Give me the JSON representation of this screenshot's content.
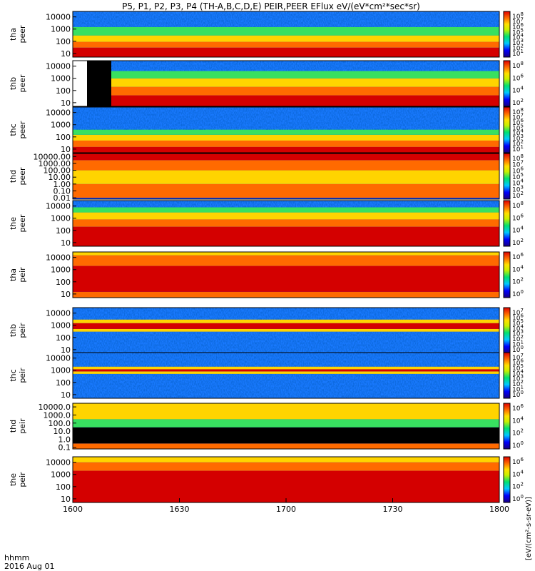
{
  "chart_data": {
    "type": "heatmap",
    "title": "P5, P1, P2, P3, P4 (TH-A,B,C,D,E) PEIR,PEER EFlux eV/(eV*cm²*sec*sr)",
    "x_ticks": [
      "1600",
      "1630",
      "1700",
      "1730",
      "1800"
    ],
    "x_range_hhmm": [
      "1600",
      "1800"
    ],
    "time_label": "hhmm",
    "date_label": "2016 Aug 01",
    "colorbar_label": "[eV/(cm²-s-sr-eV)]",
    "panels": [
      {
        "probe": "tha",
        "species": "peer",
        "yticks": [
          "10000",
          "1000",
          "100",
          "10"
        ],
        "cbar_exponents": [
          "8",
          "7",
          "6",
          "5",
          "4",
          "3",
          "2",
          "1"
        ],
        "scale": "log",
        "bands": [
          {
            "from_eV": 5,
            "to_eV": 30,
            "level": "red"
          },
          {
            "from_eV": 30,
            "to_eV": 90,
            "level": "orange"
          },
          {
            "from_eV": 90,
            "to_eV": 300,
            "level": "yellow"
          },
          {
            "from_eV": 300,
            "to_eV": 1500,
            "level": "green"
          },
          {
            "from_eV": 1500,
            "to_eV": 30000,
            "level": "blue-noise"
          }
        ]
      },
      {
        "probe": "thb",
        "species": "peer",
        "yticks": [
          "10000",
          "1000",
          "100",
          "10"
        ],
        "cbar_exponents": [
          "8",
          "6",
          "4",
          "2"
        ],
        "scale": "log",
        "data_gap_hhmm": [
          "1600",
          "1610"
        ],
        "bands": [
          {
            "from_eV": 5,
            "to_eV": 40,
            "level": "red"
          },
          {
            "from_eV": 40,
            "to_eV": 200,
            "level": "orange"
          },
          {
            "from_eV": 200,
            "to_eV": 1000,
            "level": "yellow"
          },
          {
            "from_eV": 1000,
            "to_eV": 4000,
            "level": "green"
          },
          {
            "from_eV": 4000,
            "to_eV": 30000,
            "level": "blue-noise"
          }
        ]
      },
      {
        "probe": "thc",
        "species": "peer",
        "yticks": [
          "10000",
          "1000",
          "100",
          "10"
        ],
        "cbar_exponents": [
          "8",
          "7",
          "6",
          "5",
          "4",
          "3",
          "2",
          "1"
        ],
        "scale": "log",
        "bands": [
          {
            "from_eV": 5,
            "to_eV": 15,
            "level": "red"
          },
          {
            "from_eV": 15,
            "to_eV": 50,
            "level": "orange"
          },
          {
            "from_eV": 50,
            "to_eV": 150,
            "level": "yellow"
          },
          {
            "from_eV": 150,
            "to_eV": 400,
            "level": "green"
          },
          {
            "from_eV": 400,
            "to_eV": 30000,
            "level": "blue-noise"
          }
        ]
      },
      {
        "probe": "thd",
        "species": "peer",
        "yticks": [
          "10000.00",
          "1000.00",
          "100.00",
          "10.00",
          "1.00",
          "0.10",
          "0.01"
        ],
        "cbar_exponents": [
          "8",
          "7",
          "6",
          "5",
          "4",
          "3",
          "2"
        ],
        "scale": "log",
        "bands": [
          {
            "from_eV": 0.01,
            "to_eV": 1,
            "level": "orange"
          },
          {
            "from_eV": 1,
            "to_eV": 100,
            "level": "yellow"
          },
          {
            "from_eV": 100,
            "to_eV": 3000,
            "level": "orange"
          },
          {
            "from_eV": 3000,
            "to_eV": 30000,
            "level": "red"
          }
        ]
      },
      {
        "probe": "the",
        "species": "peer",
        "yticks": [
          "10000",
          "1000",
          "100",
          "10"
        ],
        "cbar_exponents": [
          "8",
          "6",
          "4",
          "2"
        ],
        "scale": "log",
        "bands": [
          {
            "from_eV": 5,
            "to_eV": 200,
            "level": "red"
          },
          {
            "from_eV": 200,
            "to_eV": 800,
            "level": "orange"
          },
          {
            "from_eV": 800,
            "to_eV": 3000,
            "level": "yellow"
          },
          {
            "from_eV": 3000,
            "to_eV": 8000,
            "level": "green"
          },
          {
            "from_eV": 8000,
            "to_eV": 30000,
            "level": "blue-noise"
          }
        ]
      },
      {
        "probe": "tha",
        "species": "peir",
        "yticks": [
          "10000",
          "1000",
          "100",
          "10"
        ],
        "cbar_exponents": [
          "6",
          "4",
          "2",
          "0"
        ],
        "scale": "log",
        "bands": [
          {
            "from_eV": 5,
            "to_eV": 15,
            "level": "orange"
          },
          {
            "from_eV": 15,
            "to_eV": 2000,
            "level": "red"
          },
          {
            "from_eV": 2000,
            "to_eV": 15000,
            "level": "orange"
          },
          {
            "from_eV": 15000,
            "to_eV": 30000,
            "level": "yellow"
          }
        ]
      },
      {
        "probe": "thb",
        "species": "peir",
        "yticks": [
          "10000",
          "1000",
          "100",
          "10"
        ],
        "cbar_exponents": [
          "7",
          "6",
          "5",
          "4",
          "3",
          "2",
          "1",
          "0"
        ],
        "scale": "log",
        "bands": [
          {
            "from_eV": 5,
            "to_eV": 300,
            "level": "blue-noise"
          },
          {
            "from_eV": 300,
            "to_eV": 500,
            "level": "yellow"
          },
          {
            "from_eV": 500,
            "to_eV": 1500,
            "level": "red"
          },
          {
            "from_eV": 1500,
            "to_eV": 3000,
            "level": "yellow"
          },
          {
            "from_eV": 3000,
            "to_eV": 30000,
            "level": "blue-noise"
          }
        ]
      },
      {
        "probe": "thc",
        "species": "peir",
        "yticks": [
          "10000",
          "1000",
          "100",
          "10"
        ],
        "cbar_exponents": [
          "7",
          "6",
          "5",
          "4",
          "3",
          "2",
          "1",
          "0"
        ],
        "scale": "log",
        "bands": [
          {
            "from_eV": 5,
            "to_eV": 500,
            "level": "blue-noise"
          },
          {
            "from_eV": 500,
            "to_eV": 800,
            "level": "yellow"
          },
          {
            "from_eV": 800,
            "to_eV": 1200,
            "level": "red"
          },
          {
            "from_eV": 1200,
            "to_eV": 2000,
            "level": "yellow"
          },
          {
            "from_eV": 2000,
            "to_eV": 30000,
            "level": "blue-noise"
          }
        ]
      },
      {
        "probe": "thd",
        "species": "peir",
        "yticks": [
          "10000.0",
          "1000.0",
          "100.0",
          "10.0",
          "1.0",
          "0.1"
        ],
        "cbar_exponents": [
          "6",
          "4",
          "2",
          "0"
        ],
        "scale": "log",
        "bands": [
          {
            "from_eV": 0.05,
            "to_eV": 0.3,
            "level": "orange"
          },
          {
            "from_eV": 0.3,
            "to_eV": 30,
            "level": "black"
          },
          {
            "from_eV": 30,
            "to_eV": 300,
            "level": "green"
          },
          {
            "from_eV": 300,
            "to_eV": 30000,
            "level": "yellow"
          }
        ]
      },
      {
        "probe": "the",
        "species": "peir",
        "yticks": [
          "10000",
          "1000",
          "100",
          "10"
        ],
        "cbar_exponents": [
          "6",
          "4",
          "2",
          "0"
        ],
        "scale": "log",
        "bands": [
          {
            "from_eV": 5,
            "to_eV": 2000,
            "level": "red"
          },
          {
            "from_eV": 2000,
            "to_eV": 10000,
            "level": "orange"
          },
          {
            "from_eV": 10000,
            "to_eV": 30000,
            "level": "yellow"
          }
        ]
      }
    ]
  }
}
